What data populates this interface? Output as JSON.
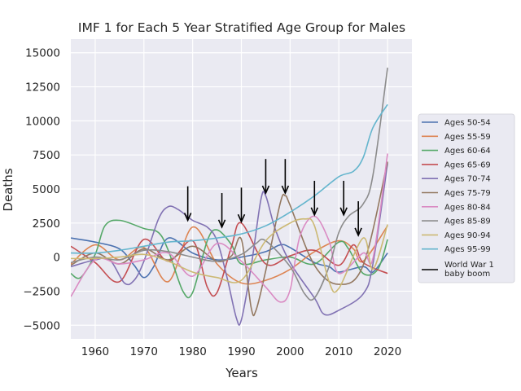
{
  "chart_data": {
    "type": "line",
    "title": "IMF 1 for Each 5 Year Stratified Age Group for Males",
    "xlabel": "Years",
    "ylabel": "Deaths",
    "xlim": [
      1955,
      2025
    ],
    "ylim": [
      -6000,
      16000
    ],
    "xticks": [
      1960,
      1970,
      1980,
      1990,
      2000,
      2010,
      2020
    ],
    "yticks": [
      -5000,
      -2500,
      0,
      2500,
      5000,
      7500,
      10000,
      12500,
      15000
    ],
    "ytick_labels": [
      "−5000",
      "−2500",
      "0",
      "2500",
      "5000",
      "7500",
      "10000",
      "12500",
      "15000"
    ],
    "grid": true,
    "legend_position": "right, outside plot",
    "series": [
      {
        "name": "Ages 50-54",
        "color": "#4c72b0",
        "x": [
          1955,
          1960,
          1965,
          1968,
          1970,
          1972,
          1975,
          1980,
          1985,
          1990,
          1995,
          1998,
          2000,
          2005,
          2008,
          2010,
          2015,
          2017,
          2020
        ],
        "y": [
          1400,
          1100,
          600,
          -600,
          -1500,
          -700,
          1400,
          300,
          -200,
          0,
          400,
          900,
          700,
          -400,
          -700,
          -1100,
          -700,
          -1100,
          300
        ]
      },
      {
        "name": "Ages 55-59",
        "color": "#dd8452",
        "x": [
          1955,
          1960,
          1965,
          1970,
          1975,
          1980,
          1985,
          1990,
          1995,
          2000,
          2005,
          2010,
          2013,
          2015,
          2020
        ],
        "y": [
          -500,
          900,
          -200,
          700,
          -1800,
          2200,
          -500,
          -1900,
          -1700,
          -900,
          400,
          1200,
          600,
          -300,
          2300
        ]
      },
      {
        "name": "Ages 60-64",
        "color": "#55a868",
        "x": [
          1955,
          1957,
          1960,
          1962,
          1965,
          1970,
          1973,
          1975,
          1978,
          1980,
          1983,
          1985,
          1988,
          1990,
          1995,
          2000,
          2005,
          2010,
          2012,
          2015,
          2018,
          2020
        ],
        "y": [
          -1200,
          -1500,
          200,
          2300,
          2700,
          2100,
          1800,
          500,
          -2500,
          -2600,
          1200,
          2000,
          900,
          -500,
          -200,
          0,
          -500,
          1100,
          600,
          -1200,
          -900,
          1300
        ]
      },
      {
        "name": "Ages 65-69",
        "color": "#c44e52",
        "x": [
          1955,
          1960,
          1965,
          1970,
          1975,
          1980,
          1983,
          1985,
          1988,
          1990,
          1995,
          2000,
          2005,
          2010,
          2013,
          2015,
          2020
        ],
        "y": [
          800,
          -400,
          -1800,
          1300,
          -300,
          1200,
          -2200,
          -2600,
          800,
          2500,
          -500,
          100,
          500,
          -600,
          900,
          -400,
          -1200
        ]
      },
      {
        "name": "Ages 70-74",
        "color": "#8172b3",
        "x": [
          1955,
          1960,
          1963,
          1966,
          1968,
          1970,
          1973,
          1975,
          1977,
          1980,
          1983,
          1985,
          1987,
          1989,
          1990,
          1992,
          1994,
          1995,
          1997,
          2000,
          2005,
          2007,
          2010,
          2015,
          2017,
          2020
        ],
        "y": [
          -700,
          -200,
          -200,
          -1900,
          -1700,
          -300,
          2800,
          3700,
          3500,
          2700,
          2200,
          1200,
          -1400,
          -4500,
          -4600,
          -700,
          4200,
          4500,
          2000,
          -400,
          -3000,
          -4200,
          -3900,
          -2700,
          -500,
          6900
        ]
      },
      {
        "name": "Ages 75-79",
        "color": "#937860",
        "x": [
          1955,
          1960,
          1965,
          1970,
          1975,
          1980,
          1985,
          1988,
          1990,
          1992,
          1993,
          1995,
          1998,
          1999,
          2000,
          2005,
          2010,
          2015,
          2020
        ],
        "y": [
          -600,
          300,
          -500,
          600,
          -200,
          800,
          -300,
          100,
          1300,
          -3700,
          -3900,
          -1000,
          4000,
          4500,
          3800,
          -600,
          -2000,
          -600,
          7000
        ]
      },
      {
        "name": "Ages 80-84",
        "color": "#da8bc3",
        "x": [
          1955,
          1960,
          1965,
          1970,
          1975,
          1980,
          1985,
          1990,
          1995,
          1998,
          2000,
          2002,
          2005,
          2008,
          2010,
          2015,
          2017,
          2020
        ],
        "y": [
          -2900,
          -200,
          -500,
          -200,
          300,
          -1400,
          1000,
          -300,
          -2200,
          -3300,
          -2400,
          1500,
          3000,
          1200,
          -1200,
          300,
          -100,
          7600
        ]
      },
      {
        "name": "Ages 85-89",
        "color": "#8c8c8c",
        "x": [
          1955,
          1960,
          1965,
          1970,
          1975,
          1980,
          1985,
          1990,
          1993,
          1995,
          2000,
          2003,
          2005,
          2008,
          2010,
          2012,
          2015,
          2017,
          2020
        ],
        "y": [
          -400,
          0,
          -200,
          500,
          400,
          0,
          -300,
          200,
          1000,
          1200,
          -700,
          -2700,
          -3000,
          -700,
          1800,
          3000,
          3900,
          6000,
          13900
        ]
      },
      {
        "name": "Ages 90-94",
        "color": "#ccb974",
        "x": [
          1955,
          1960,
          1965,
          1970,
          1975,
          1980,
          1985,
          1990,
          1995,
          2000,
          2003,
          2005,
          2008,
          2010,
          2015,
          2017,
          2020
        ],
        "y": [
          -100,
          -100,
          0,
          200,
          -300,
          -1100,
          -1500,
          -1700,
          1200,
          2500,
          2800,
          2300,
          -1800,
          -2300,
          1400,
          -900,
          2400
        ]
      },
      {
        "name": "Ages 95-99",
        "color": "#64b5cd",
        "x": [
          1955,
          1960,
          1965,
          1970,
          1975,
          1980,
          1985,
          1990,
          1995,
          2000,
          2005,
          2010,
          2013,
          2015,
          2017,
          2020
        ],
        "y": [
          300,
          300,
          500,
          800,
          1100,
          1200,
          1400,
          1700,
          2300,
          3300,
          4500,
          5900,
          6300,
          7300,
          9500,
          11200
        ]
      }
    ],
    "annotations": {
      "name": "World War 1 baby boom",
      "color": "#000000",
      "arrows": [
        {
          "x": 1979,
          "y_from": 5200,
          "y_to": 2700
        },
        {
          "x": 1986,
          "y_from": 4700,
          "y_to": 2200
        },
        {
          "x": 1990,
          "y_from": 5100,
          "y_to": 2600
        },
        {
          "x": 1995,
          "y_from": 7200,
          "y_to": 4700
        },
        {
          "x": 1999,
          "y_from": 7200,
          "y_to": 4700
        },
        {
          "x": 2005,
          "y_from": 5600,
          "y_to": 3100
        },
        {
          "x": 2011,
          "y_from": 5600,
          "y_to": 3100
        },
        {
          "x": 2014,
          "y_from": 4100,
          "y_to": 1600
        }
      ]
    },
    "legend_entries": [
      "Ages 50-54",
      "Ages 55-59",
      "Ages 60-64",
      "Ages 65-69",
      "Ages 70-74",
      "Ages 75-79",
      "Ages 80-84",
      "Ages 85-89",
      "Ages 90-94",
      "Ages 95-99"
    ],
    "legend_annotation_label": [
      "World War 1",
      "baby boom"
    ]
  }
}
